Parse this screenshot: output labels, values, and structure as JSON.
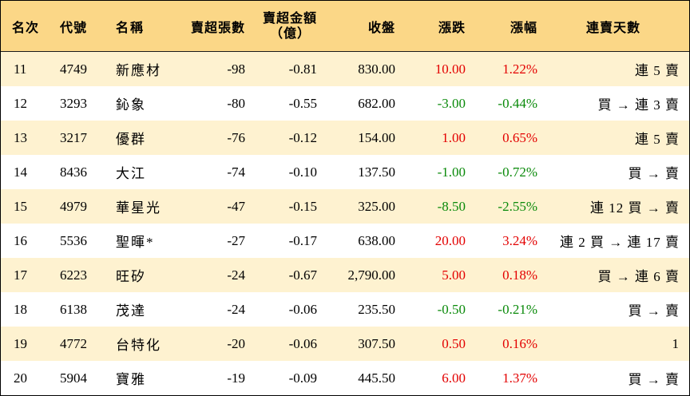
{
  "headers": {
    "rank": "名次",
    "code": "代號",
    "name": "名稱",
    "net_sell_lots": "賣超張數",
    "net_sell_amount_line1": "賣超金額",
    "net_sell_amount_line2": "（億）",
    "close": "收盤",
    "change": "漲跌",
    "change_pct": "漲幅",
    "consecutive": "連賣天數"
  },
  "colors": {
    "header_bg": "#fbd787",
    "stripe_bg": "#fef2d0",
    "up": "#e30000",
    "down": "#0a8a0a"
  },
  "rows": [
    {
      "rank": "11",
      "code": "4749",
      "name": "新應材",
      "lots": "-98",
      "amount": "-0.81",
      "close": "830.00",
      "change": "10.00",
      "pct": "1.22%",
      "direction": "up",
      "consecutive": "連 5 賣"
    },
    {
      "rank": "12",
      "code": "3293",
      "name": "鈊象",
      "lots": "-80",
      "amount": "-0.55",
      "close": "682.00",
      "change": "-3.00",
      "pct": "-0.44%",
      "direction": "down",
      "consecutive": "買 → 連 3 賣"
    },
    {
      "rank": "13",
      "code": "3217",
      "name": "優群",
      "lots": "-76",
      "amount": "-0.12",
      "close": "154.00",
      "change": "1.00",
      "pct": "0.65%",
      "direction": "up",
      "consecutive": "連 5 賣"
    },
    {
      "rank": "14",
      "code": "8436",
      "name": "大江",
      "lots": "-74",
      "amount": "-0.10",
      "close": "137.50",
      "change": "-1.00",
      "pct": "-0.72%",
      "direction": "down",
      "consecutive": "買 → 賣"
    },
    {
      "rank": "15",
      "code": "4979",
      "name": "華星光",
      "lots": "-47",
      "amount": "-0.15",
      "close": "325.00",
      "change": "-8.50",
      "pct": "-2.55%",
      "direction": "down",
      "consecutive": "連 12 買 → 賣"
    },
    {
      "rank": "16",
      "code": "5536",
      "name": "聖暉*",
      "lots": "-27",
      "amount": "-0.17",
      "close": "638.00",
      "change": "20.00",
      "pct": "3.24%",
      "direction": "up",
      "consecutive": "連 2 買 → 連 17 賣"
    },
    {
      "rank": "17",
      "code": "6223",
      "name": "旺矽",
      "lots": "-24",
      "amount": "-0.67",
      "close": "2,790.00",
      "change": "5.00",
      "pct": "0.18%",
      "direction": "up",
      "consecutive": "買 → 連 6 賣"
    },
    {
      "rank": "18",
      "code": "6138",
      "name": "茂達",
      "lots": "-24",
      "amount": "-0.06",
      "close": "235.50",
      "change": "-0.50",
      "pct": "-0.21%",
      "direction": "down",
      "consecutive": "買 → 賣"
    },
    {
      "rank": "19",
      "code": "4772",
      "name": "台特化",
      "lots": "-20",
      "amount": "-0.06",
      "close": "307.50",
      "change": "0.50",
      "pct": "0.16%",
      "direction": "up",
      "consecutive": "1"
    },
    {
      "rank": "20",
      "code": "5904",
      "name": "寶雅",
      "lots": "-19",
      "amount": "-0.09",
      "close": "445.50",
      "change": "6.00",
      "pct": "1.37%",
      "direction": "up",
      "consecutive": "買 → 賣"
    }
  ]
}
